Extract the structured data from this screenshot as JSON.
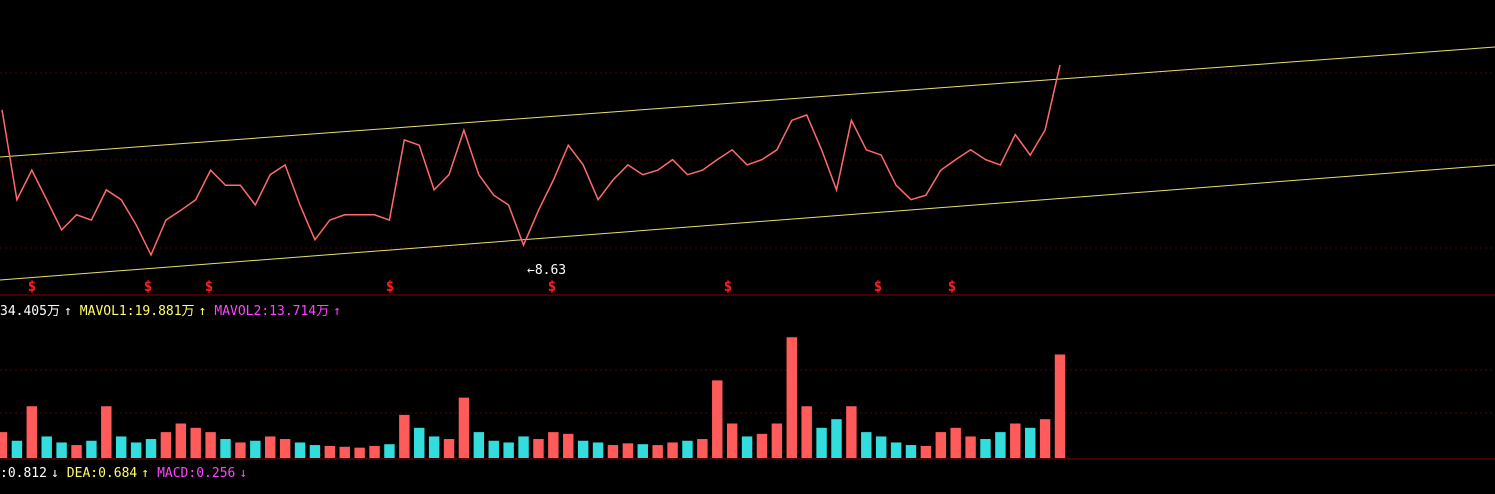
{
  "price_chart": {
    "price_range": [
      8.3,
      12.2
    ],
    "closes": [
      10.75,
      9.56,
      9.95,
      9.56,
      9.16,
      9.36,
      9.29,
      9.69,
      9.56,
      9.23,
      8.83,
      9.29,
      9.42,
      9.56,
      9.95,
      9.75,
      9.75,
      9.49,
      9.89,
      10.02,
      9.49,
      9.03,
      9.29,
      9.36,
      9.36,
      9.36,
      9.29,
      10.35,
      10.28,
      9.69,
      9.89,
      10.48,
      9.89,
      9.62,
      9.49,
      8.96,
      9.42,
      9.82,
      10.28,
      10.02,
      9.56,
      9.82,
      10.02,
      9.89,
      9.95,
      10.09,
      9.89,
      9.95,
      10.09,
      10.22,
      10.02,
      10.09,
      10.22,
      10.61,
      10.68,
      10.22,
      9.69,
      10.61,
      10.22,
      10.15,
      9.75,
      9.56,
      9.62,
      9.95,
      10.09,
      10.22,
      10.09,
      10.02,
      10.42,
      10.15,
      10.48,
      11.34
    ],
    "line_color": "#ff6b6b",
    "low_label": 8.63,
    "low_arrow": "←",
    "signal_marker": "$"
  },
  "volume_legend": [
    {
      "text": "34.405万",
      "arrow": "↑",
      "color": "#ffffff"
    },
    {
      "text": "MAVOL1:19.881万",
      "arrow": "↑",
      "color": "#ffff66"
    },
    {
      "text": "MAVOL2:13.714万",
      "arrow": "↑",
      "color": "#ff44ff"
    }
  ],
  "volume_chart": {
    "volume_range": [
      0,
      160
    ],
    "volumes": [
      30,
      20,
      60,
      25,
      18,
      15,
      20,
      60,
      25,
      18,
      22,
      30,
      40,
      35,
      30,
      22,
      18,
      20,
      25,
      22,
      18,
      15,
      14,
      13,
      12,
      14,
      16,
      50,
      35,
      25,
      22,
      70,
      30,
      20,
      18,
      25,
      22,
      30,
      28,
      20,
      18,
      15,
      17,
      16,
      15,
      18,
      20,
      22,
      90,
      40,
      25,
      28,
      40,
      140,
      60,
      35,
      45,
      60,
      30,
      25,
      18,
      15,
      14,
      30,
      35,
      25,
      22,
      30,
      40,
      35,
      45,
      120
    ],
    "up_color": "#ff5b5b",
    "down_color": "#33dddd"
  },
  "macd_legend": [
    {
      "text": ":0.812",
      "arrow": "↓",
      "color": "#ffffff"
    },
    {
      "text": "DEA:0.684",
      "arrow": "↑",
      "color": "#ffff66"
    },
    {
      "text": "MACD:0.256",
      "arrow": "↓",
      "color": "#ff44ff"
    }
  ]
}
